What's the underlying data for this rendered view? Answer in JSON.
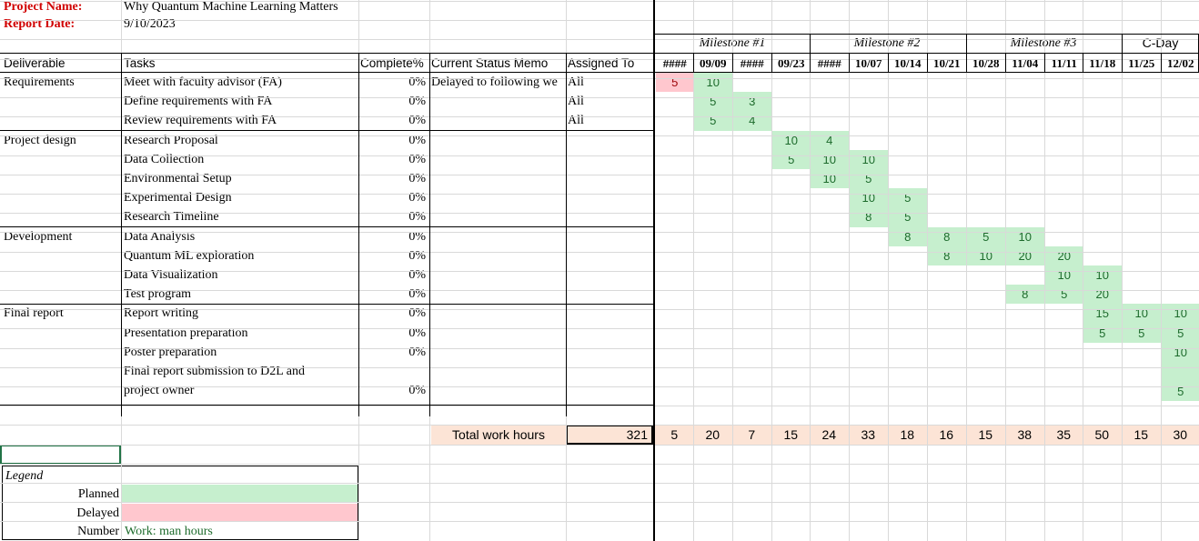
{
  "project": {
    "name_label": "Project Name:",
    "name_value": "Why Quantum Machine Learning Matters",
    "date_label": "Report Date:",
    "date_value": "9/10/2023"
  },
  "headers": {
    "deliverable": "Deliverable",
    "tasks": "Tasks",
    "complete": "Complete%",
    "memo": "Current Status Memo",
    "assigned": "Assigned To"
  },
  "milestones": [
    "Milestone #1",
    "Milestone #2",
    "Milestone #3",
    "C-Day"
  ],
  "weeks": [
    "####",
    "09/09",
    "####",
    "09/23",
    "####",
    "10/07",
    "10/14",
    "10/21",
    "10/28",
    "11/04",
    "11/11",
    "11/18",
    "11/25",
    "12/02"
  ],
  "rows": [
    {
      "deliverable": "Requirements",
      "task": "Meet with faculty advisor (FA)",
      "complete": "0%",
      "memo": "Delayed to following we",
      "assigned": "All"
    },
    {
      "deliverable": "",
      "task": "Define requirements with FA",
      "complete": "0%",
      "memo": "",
      "assigned": "All"
    },
    {
      "deliverable": "",
      "task": "Review requirements with FA",
      "complete": "0%",
      "memo": "",
      "assigned": "All"
    },
    {
      "deliverable": "Project design",
      "task": "Research Proposal",
      "complete": "0%",
      "memo": "",
      "assigned": ""
    },
    {
      "deliverable": "",
      "task": "Data Collection",
      "complete": "0%",
      "memo": "",
      "assigned": ""
    },
    {
      "deliverable": "",
      "task": "Environmental Setup",
      "complete": "0%",
      "memo": "",
      "assigned": ""
    },
    {
      "deliverable": "",
      "task": "Experimental Design",
      "complete": "0%",
      "memo": "",
      "assigned": ""
    },
    {
      "deliverable": "",
      "task": "Research Timeline",
      "complete": "0%",
      "memo": "",
      "assigned": ""
    },
    {
      "deliverable": "Development",
      "task": "Data Analysis",
      "complete": "0%",
      "memo": "",
      "assigned": ""
    },
    {
      "deliverable": "",
      "task": "Quantum ML exploration",
      "complete": "0%",
      "memo": "",
      "assigned": ""
    },
    {
      "deliverable": "",
      "task": "Data Visualization",
      "complete": "0%",
      "memo": "",
      "assigned": ""
    },
    {
      "deliverable": "",
      "task": "Test program",
      "complete": "0%",
      "memo": "",
      "assigned": ""
    },
    {
      "deliverable": "Final report",
      "task": "Report writing",
      "complete": "0%",
      "memo": "",
      "assigned": ""
    },
    {
      "deliverable": "",
      "task": "Presentation preparation",
      "complete": "0%",
      "memo": "",
      "assigned": ""
    },
    {
      "deliverable": "",
      "task": "Poster preparation",
      "complete": "0%",
      "memo": "",
      "assigned": ""
    },
    {
      "deliverable": "",
      "task": "Final report submission to D2L and",
      "task_line2": "project owner",
      "complete": "0%",
      "memo": "",
      "assigned": ""
    }
  ],
  "schedule": [
    {
      "row": 0,
      "week": 0,
      "value": "5",
      "status": "delayed"
    },
    {
      "row": 0,
      "week": 1,
      "value": "10",
      "status": "planned"
    },
    {
      "row": 1,
      "week": 1,
      "value": "5",
      "status": "planned"
    },
    {
      "row": 1,
      "week": 2,
      "value": "3",
      "status": "planned"
    },
    {
      "row": 2,
      "week": 1,
      "value": "5",
      "status": "planned"
    },
    {
      "row": 2,
      "week": 2,
      "value": "4",
      "status": "planned"
    },
    {
      "row": 3,
      "week": 3,
      "value": "10",
      "status": "planned"
    },
    {
      "row": 3,
      "week": 4,
      "value": "4",
      "status": "planned"
    },
    {
      "row": 4,
      "week": 3,
      "value": "5",
      "status": "planned"
    },
    {
      "row": 4,
      "week": 4,
      "value": "10",
      "status": "planned"
    },
    {
      "row": 4,
      "week": 5,
      "value": "10",
      "status": "planned"
    },
    {
      "row": 5,
      "week": 4,
      "value": "10",
      "status": "planned"
    },
    {
      "row": 5,
      "week": 5,
      "value": "5",
      "status": "planned"
    },
    {
      "row": 6,
      "week": 5,
      "value": "10",
      "status": "planned"
    },
    {
      "row": 6,
      "week": 6,
      "value": "5",
      "status": "planned"
    },
    {
      "row": 7,
      "week": 5,
      "value": "8",
      "status": "planned"
    },
    {
      "row": 7,
      "week": 6,
      "value": "5",
      "status": "planned"
    },
    {
      "row": 8,
      "week": 6,
      "value": "8",
      "status": "planned"
    },
    {
      "row": 8,
      "week": 7,
      "value": "8",
      "status": "planned"
    },
    {
      "row": 8,
      "week": 8,
      "value": "5",
      "status": "planned"
    },
    {
      "row": 8,
      "week": 9,
      "value": "10",
      "status": "planned"
    },
    {
      "row": 9,
      "week": 7,
      "value": "8",
      "status": "planned"
    },
    {
      "row": 9,
      "week": 8,
      "value": "10",
      "status": "planned"
    },
    {
      "row": 9,
      "week": 9,
      "value": "20",
      "status": "planned"
    },
    {
      "row": 9,
      "week": 10,
      "value": "20",
      "status": "planned"
    },
    {
      "row": 10,
      "week": 10,
      "value": "10",
      "status": "planned"
    },
    {
      "row": 10,
      "week": 11,
      "value": "10",
      "status": "planned"
    },
    {
      "row": 11,
      "week": 9,
      "value": "8",
      "status": "planned"
    },
    {
      "row": 11,
      "week": 10,
      "value": "5",
      "status": "planned"
    },
    {
      "row": 11,
      "week": 11,
      "value": "20",
      "status": "planned"
    },
    {
      "row": 12,
      "week": 11,
      "value": "15",
      "status": "planned"
    },
    {
      "row": 12,
      "week": 12,
      "value": "10",
      "status": "planned"
    },
    {
      "row": 12,
      "week": 13,
      "value": "10",
      "status": "planned"
    },
    {
      "row": 13,
      "week": 11,
      "value": "5",
      "status": "planned"
    },
    {
      "row": 13,
      "week": 12,
      "value": "5",
      "status": "planned"
    },
    {
      "row": 13,
      "week": 13,
      "value": "5",
      "status": "planned"
    },
    {
      "row": 14,
      "week": 13,
      "value": "10",
      "status": "planned"
    },
    {
      "row": 15,
      "week": 13,
      "value": "5",
      "status": "planned"
    }
  ],
  "totals": {
    "label": "Total work hours",
    "grand": "321",
    "weekly": [
      "5",
      "20",
      "7",
      "15",
      "24",
      "33",
      "18",
      "16",
      "15",
      "38",
      "35",
      "50",
      "15",
      "30"
    ]
  },
  "legend": {
    "title": "Legend",
    "planned_label": "Planned",
    "delayed_label": "Delayed",
    "number_label": "Number",
    "number_desc": "Work: man hours"
  },
  "colors": {
    "planned": "#c6efce",
    "delayed": "#ffc7ce",
    "totals": "#fce4d6",
    "label_red": "#d00000"
  }
}
